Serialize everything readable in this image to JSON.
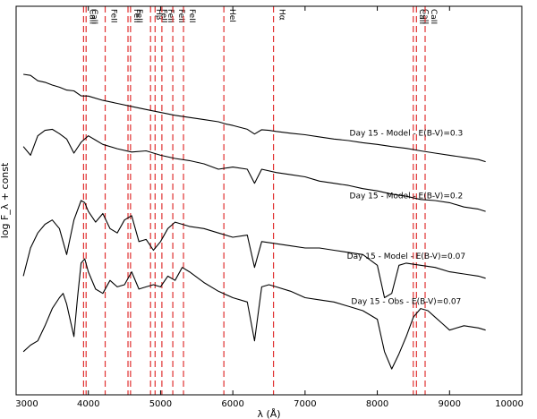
{
  "chart_data": {
    "type": "line",
    "xlabel": "λ (Å)",
    "ylabel": "log F_λ + const",
    "xlim": [
      3000,
      10000
    ],
    "x_ticks": [
      3000,
      4000,
      5000,
      6000,
      7000,
      8000,
      9000,
      10000
    ],
    "grid": false,
    "colors": {
      "lines": "#e03030",
      "spectra": "#000000"
    },
    "line_markers": [
      {
        "label": "CaII",
        "x": 3934
      },
      {
        "label": "CaII",
        "x": 3969
      },
      {
        "label": "FeII",
        "x": 4233
      },
      {
        "label": "FeII",
        "x": 4549
      },
      {
        "label": "FeII",
        "x": 4584
      },
      {
        "label": "Hβ",
        "x": 4861
      },
      {
        "label": "FeII",
        "x": 4924
      },
      {
        "label": "FeII",
        "x": 5018
      },
      {
        "label": "FeII",
        "x": 5169
      },
      {
        "label": "FeII",
        "x": 5317
      },
      {
        "label": "HeI",
        "x": 5876
      },
      {
        "label": "Hα",
        "x": 6563
      },
      {
        "label": "CaII",
        "x": 8498
      },
      {
        "label": "CaII",
        "x": 8542
      },
      {
        "label": "CaII",
        "x": 8662
      }
    ],
    "series": [
      {
        "name": "Day 15 - Model - E(B-V)=0.3",
        "x": [
          3100,
          3200,
          3300,
          3400,
          3500,
          3600,
          3700,
          3800,
          3900,
          4000,
          4200,
          4400,
          4600,
          4800,
          5000,
          5200,
          5400,
          5600,
          5800,
          5900,
          6000,
          6200,
          6300,
          6400,
          6500,
          6600,
          6800,
          7000,
          7200,
          7400,
          7600,
          7800,
          8000,
          8200,
          8400,
          8600,
          8800,
          9000,
          9200,
          9400,
          9500
        ],
        "y": [
          8.35,
          8.3,
          8.05,
          7.98,
          7.85,
          7.75,
          7.62,
          7.58,
          7.35,
          7.34,
          7.14,
          7.0,
          6.86,
          6.72,
          6.58,
          6.45,
          6.35,
          6.25,
          6.15,
          6.05,
          5.98,
          5.8,
          5.58,
          5.78,
          5.75,
          5.7,
          5.62,
          5.55,
          5.45,
          5.35,
          5.28,
          5.18,
          5.1,
          5.0,
          4.92,
          4.8,
          4.7,
          4.6,
          4.5,
          4.4,
          4.3
        ]
      },
      {
        "name": "Day 15 - Model - E(B-V)=0.2",
        "x": [
          3100,
          3200,
          3300,
          3400,
          3500,
          3600,
          3700,
          3800,
          3900,
          4000,
          4100,
          4200,
          4400,
          4600,
          4800,
          5000,
          5200,
          5400,
          5600,
          5800,
          6000,
          6200,
          6300,
          6400,
          6600,
          6800,
          7000,
          7200,
          7400,
          7600,
          7800,
          8000,
          8200,
          8400,
          8600,
          8800,
          9000,
          9200,
          9400,
          9500
        ],
        "y": [
          5.0,
          4.6,
          5.5,
          5.75,
          5.8,
          5.6,
          5.35,
          4.7,
          5.2,
          5.5,
          5.3,
          5.1,
          4.9,
          4.75,
          4.8,
          4.6,
          4.45,
          4.35,
          4.2,
          3.95,
          4.05,
          3.95,
          3.3,
          3.95,
          3.8,
          3.7,
          3.6,
          3.4,
          3.3,
          3.2,
          3.05,
          2.95,
          2.8,
          2.7,
          2.55,
          2.5,
          2.4,
          2.2,
          2.1,
          2.0
        ]
      },
      {
        "name": "Day 15 - Model - E(B-V)=0.07",
        "x": [
          3100,
          3200,
          3300,
          3400,
          3500,
          3600,
          3700,
          3800,
          3900,
          3950,
          4000,
          4100,
          4200,
          4300,
          4400,
          4500,
          4600,
          4700,
          4800,
          4900,
          5000,
          5100,
          5200,
          5300,
          5400,
          5600,
          5800,
          6000,
          6200,
          6300,
          6400,
          6600,
          6800,
          7000,
          7200,
          7400,
          7600,
          7800,
          8000,
          8100,
          8200,
          8300,
          8400,
          8600,
          8800,
          9000,
          9200,
          9400,
          9500
        ],
        "y": [
          -1.0,
          0.3,
          1.0,
          1.4,
          1.6,
          1.2,
          0.0,
          1.6,
          2.5,
          2.4,
          2.0,
          1.5,
          1.9,
          1.2,
          1.0,
          1.6,
          1.8,
          0.6,
          0.7,
          0.2,
          0.6,
          1.2,
          1.5,
          1.4,
          1.3,
          1.2,
          1.0,
          0.8,
          0.9,
          -0.6,
          0.6,
          0.5,
          0.4,
          0.3,
          0.3,
          0.2,
          0.1,
          0.0,
          -0.5,
          -2.0,
          -1.8,
          -0.5,
          -0.4,
          -0.5,
          -0.6,
          -0.8,
          -0.9,
          -1.0,
          -1.1
        ]
      },
      {
        "name": "Day 15 - Obs - E(B-V)=0.07",
        "x": [
          3100,
          3200,
          3300,
          3400,
          3500,
          3600,
          3650,
          3700,
          3800,
          3850,
          3900,
          3950,
          4000,
          4100,
          4200,
          4300,
          4400,
          4500,
          4600,
          4700,
          4800,
          4900,
          5000,
          5100,
          5200,
          5300,
          5400,
          5600,
          5800,
          6000,
          6200,
          6300,
          6400,
          6500,
          6600,
          6800,
          7000,
          7200,
          7400,
          7600,
          7800,
          8000,
          8100,
          8200,
          8300,
          8400,
          8500,
          8600,
          8700,
          8800,
          8900,
          9000,
          9200,
          9400,
          9500
        ],
        "y": [
          -4.5,
          -4.2,
          -4.0,
          -3.3,
          -2.5,
          -2.0,
          -1.8,
          -2.3,
          -3.8,
          -2.0,
          -0.4,
          -0.2,
          -0.8,
          -1.6,
          -1.8,
          -1.2,
          -1.5,
          -1.4,
          -0.8,
          -1.6,
          -1.5,
          -1.4,
          -1.5,
          -1.0,
          -1.2,
          -0.6,
          -0.8,
          -1.3,
          -1.7,
          -2.0,
          -2.2,
          -4.0,
          -1.5,
          -1.4,
          -1.5,
          -1.7,
          -2.0,
          -2.1,
          -2.2,
          -2.4,
          -2.6,
          -3.0,
          -4.5,
          -5.3,
          -4.6,
          -3.8,
          -2.9,
          -2.5,
          -2.6,
          -2.9,
          -3.2,
          -3.5,
          -3.3,
          -3.4,
          -3.5
        ]
      }
    ],
    "series_labels": [
      {
        "text": "Day 15 - Model - E(B-V)=0.3",
        "x": 8400,
        "y": 5.5
      },
      {
        "text": "Day 15 - Model - E(B-V)=0.2",
        "x": 8400,
        "y": 2.6
      },
      {
        "text": "Day 15 - Model - E(B-V)=0.07",
        "x": 8400,
        "y": -0.2
      },
      {
        "text": "Day 15 - Obs - E(B-V)=0.07",
        "x": 8400,
        "y": -2.3
      }
    ],
    "ylim": [
      -6.5,
      11.5
    ]
  }
}
